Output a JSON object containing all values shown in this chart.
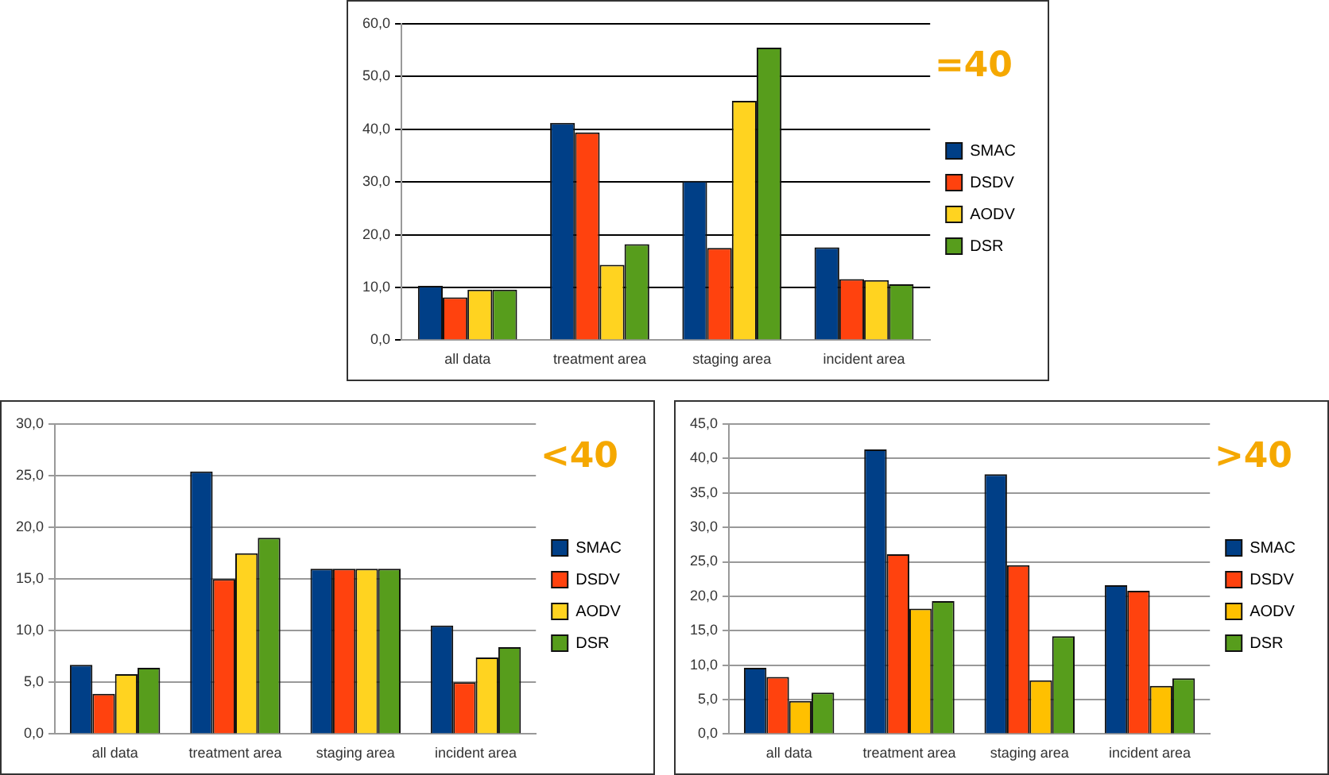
{
  "chart_data": [
    {
      "type": "bar",
      "title": "=40",
      "categories": [
        "all data",
        "treatment area",
        "staging area",
        "incident area"
      ],
      "series": [
        {
          "name": "SMAC",
          "color": "#003f87",
          "values": [
            10.3,
            41.2,
            30.2,
            17.6
          ]
        },
        {
          "name": "DSDV",
          "color": "#ff420e",
          "values": [
            8.1,
            39.4,
            17.5,
            11.6
          ]
        },
        {
          "name": "AODV",
          "color": "#ffd320",
          "values": [
            9.6,
            14.3,
            45.4,
            11.4
          ]
        },
        {
          "name": "DSR",
          "color": "#579d1c",
          "values": [
            9.6,
            18.2,
            55.5,
            10.6
          ]
        }
      ],
      "ylim": [
        0,
        60
      ],
      "yticks": [
        {
          "value": 0,
          "label": "0,0"
        },
        {
          "value": 10,
          "label": "10,0"
        },
        {
          "value": 20,
          "label": "20,0"
        },
        {
          "value": 30,
          "label": "30,0"
        },
        {
          "value": 40,
          "label": "40,0"
        },
        {
          "value": 50,
          "label": "50,0"
        },
        {
          "value": 60,
          "label": "60,0"
        }
      ],
      "grid": "y",
      "legend": "right"
    },
    {
      "type": "bar",
      "title": "<40",
      "categories": [
        "all data",
        "treatment area",
        "staging area",
        "incident area"
      ],
      "series": [
        {
          "name": "SMAC",
          "color": "#003f87",
          "values": [
            6.7,
            25.4,
            16.0,
            10.5
          ]
        },
        {
          "name": "DSDV",
          "color": "#ff420e",
          "values": [
            3.9,
            15.0,
            16.0,
            5.0
          ]
        },
        {
          "name": "AODV",
          "color": "#ffd320",
          "values": [
            5.8,
            17.5,
            16.0,
            7.4
          ]
        },
        {
          "name": "DSR",
          "color": "#579d1c",
          "values": [
            6.4,
            19.0,
            16.0,
            8.4
          ]
        }
      ],
      "ylim": [
        0,
        30
      ],
      "yticks": [
        {
          "value": 0,
          "label": "0,0"
        },
        {
          "value": 5,
          "label": "5,0"
        },
        {
          "value": 10,
          "label": "10,0"
        },
        {
          "value": 15,
          "label": "15,0"
        },
        {
          "value": 20,
          "label": "20,0"
        },
        {
          "value": 25,
          "label": "25,0"
        },
        {
          "value": 30,
          "label": "30,0"
        }
      ],
      "grid": "y",
      "legend": "right"
    },
    {
      "type": "bar",
      "title": ">40",
      "categories": [
        "all data",
        "treatment area",
        "staging area",
        "incident area"
      ],
      "series": [
        {
          "name": "SMAC",
          "color": "#003f87",
          "values": [
            9.6,
            41.3,
            37.7,
            21.6
          ]
        },
        {
          "name": "DSDV",
          "color": "#ff420e",
          "values": [
            8.3,
            26.1,
            24.5,
            20.8
          ]
        },
        {
          "name": "AODV",
          "color": "#ffc000",
          "values": [
            4.8,
            18.2,
            7.8,
            7.0
          ]
        },
        {
          "name": "DSR",
          "color": "#579d1c",
          "values": [
            6.0,
            19.3,
            14.2,
            8.1
          ]
        }
      ],
      "ylim": [
        0,
        45
      ],
      "yticks": [
        {
          "value": 0,
          "label": "0,0"
        },
        {
          "value": 5,
          "label": "5,0"
        },
        {
          "value": 10,
          "label": "10,0"
        },
        {
          "value": 15,
          "label": "15,0"
        },
        {
          "value": 20,
          "label": "20,0"
        },
        {
          "value": 25,
          "label": "25,0"
        },
        {
          "value": 30,
          "label": "30,0"
        },
        {
          "value": 35,
          "label": "35,0"
        },
        {
          "value": 40,
          "label": "40,0"
        },
        {
          "value": 45,
          "label": "45,0"
        }
      ],
      "grid": "y",
      "legend": "right"
    }
  ]
}
